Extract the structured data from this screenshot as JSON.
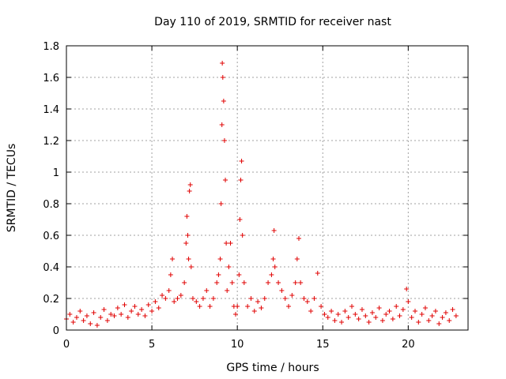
{
  "chart_data": {
    "type": "scatter",
    "title": "Day 110 of 2019, SRMTID for receiver nast",
    "xlabel": "GPS time / hours",
    "ylabel": "SRMTID / TECUs",
    "xlim": [
      0,
      23.5
    ],
    "ylim": [
      0,
      1.8
    ],
    "xticks": [
      0,
      5,
      10,
      15,
      20
    ],
    "yticks": [
      0,
      0.2,
      0.4,
      0.6,
      0.8,
      1,
      1.2,
      1.4,
      1.6,
      1.8
    ],
    "xtick_labels": [
      "0",
      "5",
      "10",
      "15",
      "20"
    ],
    "ytick_labels": [
      "0",
      "0.2",
      "0.4",
      "0.6",
      "0.8",
      "1",
      "1.2",
      "1.4",
      "1.6",
      "1.8"
    ],
    "grid": true,
    "marker": "+",
    "color": "#e00000",
    "series": [
      {
        "name": "SRMTID",
        "points": [
          [
            0.0,
            0.07
          ],
          [
            0.2,
            0.1
          ],
          [
            0.4,
            0.05
          ],
          [
            0.6,
            0.08
          ],
          [
            0.8,
            0.12
          ],
          [
            1.0,
            0.06
          ],
          [
            1.2,
            0.09
          ],
          [
            1.4,
            0.04
          ],
          [
            1.6,
            0.11
          ],
          [
            1.8,
            0.03
          ],
          [
            2.0,
            0.08
          ],
          [
            2.2,
            0.13
          ],
          [
            2.4,
            0.06
          ],
          [
            2.6,
            0.1
          ],
          [
            2.8,
            0.09
          ],
          [
            3.0,
            0.14
          ],
          [
            3.2,
            0.1
          ],
          [
            3.4,
            0.16
          ],
          [
            3.6,
            0.08
          ],
          [
            3.8,
            0.12
          ],
          [
            4.0,
            0.15
          ],
          [
            4.2,
            0.1
          ],
          [
            4.4,
            0.13
          ],
          [
            4.6,
            0.09
          ],
          [
            4.8,
            0.16
          ],
          [
            5.0,
            0.12
          ],
          [
            5.2,
            0.18
          ],
          [
            5.4,
            0.14
          ],
          [
            5.6,
            0.22
          ],
          [
            5.8,
            0.2
          ],
          [
            6.0,
            0.25
          ],
          [
            6.1,
            0.35
          ],
          [
            6.2,
            0.45
          ],
          [
            6.3,
            0.18
          ],
          [
            6.5,
            0.2
          ],
          [
            6.7,
            0.22
          ],
          [
            6.9,
            0.3
          ],
          [
            7.0,
            0.55
          ],
          [
            7.05,
            0.72
          ],
          [
            7.1,
            0.6
          ],
          [
            7.15,
            0.45
          ],
          [
            7.2,
            0.88
          ],
          [
            7.25,
            0.92
          ],
          [
            7.3,
            0.4
          ],
          [
            7.4,
            0.2
          ],
          [
            7.6,
            0.18
          ],
          [
            7.8,
            0.15
          ],
          [
            8.0,
            0.2
          ],
          [
            8.2,
            0.25
          ],
          [
            8.4,
            0.15
          ],
          [
            8.6,
            0.2
          ],
          [
            8.8,
            0.3
          ],
          [
            8.9,
            0.35
          ],
          [
            9.0,
            0.45
          ],
          [
            9.05,
            0.8
          ],
          [
            9.1,
            1.3
          ],
          [
            9.12,
            1.69
          ],
          [
            9.15,
            1.6
          ],
          [
            9.2,
            1.45
          ],
          [
            9.25,
            1.2
          ],
          [
            9.3,
            0.95
          ],
          [
            9.35,
            0.55
          ],
          [
            9.4,
            0.25
          ],
          [
            9.5,
            0.4
          ],
          [
            9.6,
            0.55
          ],
          [
            9.7,
            0.3
          ],
          [
            9.8,
            0.15
          ],
          [
            9.9,
            0.1
          ],
          [
            10.0,
            0.15
          ],
          [
            10.1,
            0.35
          ],
          [
            10.15,
            0.7
          ],
          [
            10.2,
            0.95
          ],
          [
            10.25,
            1.07
          ],
          [
            10.3,
            0.6
          ],
          [
            10.4,
            0.3
          ],
          [
            10.6,
            0.15
          ],
          [
            10.8,
            0.2
          ],
          [
            11.0,
            0.12
          ],
          [
            11.2,
            0.18
          ],
          [
            11.4,
            0.14
          ],
          [
            11.6,
            0.2
          ],
          [
            11.8,
            0.3
          ],
          [
            12.0,
            0.35
          ],
          [
            12.1,
            0.45
          ],
          [
            12.15,
            0.63
          ],
          [
            12.2,
            0.4
          ],
          [
            12.4,
            0.3
          ],
          [
            12.6,
            0.25
          ],
          [
            12.8,
            0.2
          ],
          [
            13.0,
            0.15
          ],
          [
            13.2,
            0.22
          ],
          [
            13.4,
            0.3
          ],
          [
            13.5,
            0.45
          ],
          [
            13.6,
            0.58
          ],
          [
            13.7,
            0.3
          ],
          [
            13.9,
            0.2
          ],
          [
            14.1,
            0.18
          ],
          [
            14.3,
            0.12
          ],
          [
            14.5,
            0.2
          ],
          [
            14.7,
            0.36
          ],
          [
            14.9,
            0.15
          ],
          [
            15.1,
            0.1
          ],
          [
            15.3,
            0.08
          ],
          [
            15.5,
            0.12
          ],
          [
            15.7,
            0.06
          ],
          [
            15.9,
            0.1
          ],
          [
            16.1,
            0.05
          ],
          [
            16.3,
            0.12
          ],
          [
            16.5,
            0.08
          ],
          [
            16.7,
            0.15
          ],
          [
            16.9,
            0.1
          ],
          [
            17.1,
            0.07
          ],
          [
            17.3,
            0.13
          ],
          [
            17.5,
            0.09
          ],
          [
            17.7,
            0.05
          ],
          [
            17.9,
            0.11
          ],
          [
            18.1,
            0.08
          ],
          [
            18.3,
            0.14
          ],
          [
            18.5,
            0.06
          ],
          [
            18.7,
            0.1
          ],
          [
            18.9,
            0.12
          ],
          [
            19.1,
            0.07
          ],
          [
            19.3,
            0.15
          ],
          [
            19.5,
            0.09
          ],
          [
            19.7,
            0.13
          ],
          [
            19.9,
            0.26
          ],
          [
            20.0,
            0.18
          ],
          [
            20.2,
            0.08
          ],
          [
            20.4,
            0.12
          ],
          [
            20.6,
            0.05
          ],
          [
            20.8,
            0.1
          ],
          [
            21.0,
            0.14
          ],
          [
            21.2,
            0.06
          ],
          [
            21.4,
            0.09
          ],
          [
            21.6,
            0.12
          ],
          [
            21.8,
            0.04
          ],
          [
            22.0,
            0.08
          ],
          [
            22.2,
            0.11
          ],
          [
            22.4,
            0.06
          ],
          [
            22.6,
            0.13
          ],
          [
            22.8,
            0.09
          ]
        ]
      }
    ]
  }
}
